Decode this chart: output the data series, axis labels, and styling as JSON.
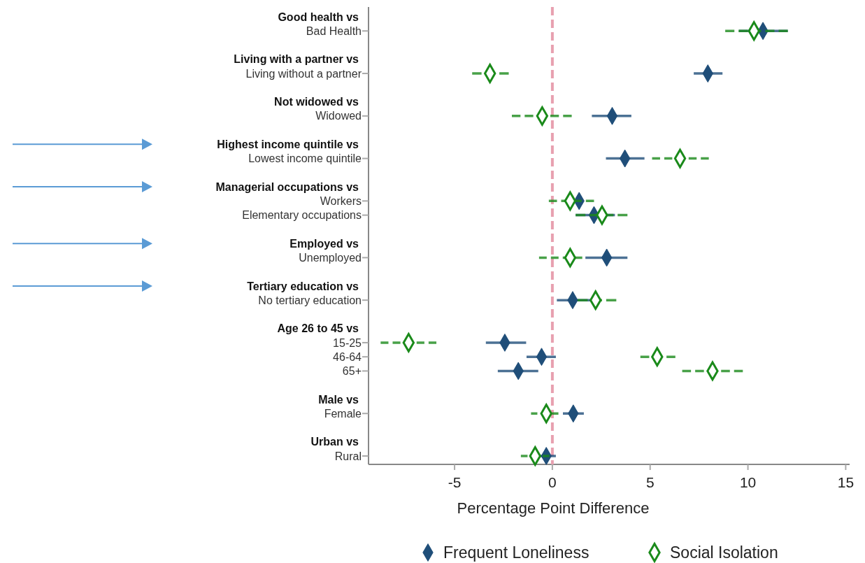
{
  "chart_data": {
    "type": "scatter",
    "orientation": "horizontal",
    "xlabel": "Percentage Point Difference",
    "categories": [
      "Good health vs",
      "Bad Health",
      null,
      "Living with a partner vs",
      "Living without a partner",
      null,
      "Not widowed vs",
      "Widowed",
      null,
      "Highest income quintile vs",
      "Lowest income quintile",
      null,
      "Managerial occupations vs",
      "Workers",
      "Elementary occupations",
      null,
      "Employed vs",
      "Unemployed",
      null,
      "Tertiary education vs",
      "No tertiary education",
      null,
      "Age 26 to 45 vs",
      "15-25",
      "46-64",
      "65+",
      null,
      "Male vs",
      "Female",
      null,
      "Urban vs",
      "Rural"
    ],
    "series": [
      {
        "name": "Frequent Loneliness",
        "color": "#1f4e79",
        "values": [
          null,
          10.77,
          null,
          null,
          7.95,
          null,
          null,
          3.06,
          null,
          null,
          3.71,
          null,
          null,
          1.37,
          2.13,
          null,
          null,
          2.78,
          null,
          null,
          1.04,
          null,
          null,
          -2.43,
          -0.55,
          -1.74,
          null,
          null,
          1.07,
          null,
          null,
          -0.31
        ],
        "errors": [
          null,
          [
            9.54,
            12.04
          ],
          null,
          null,
          [
            7.23,
            8.7
          ],
          null,
          null,
          [
            2.02,
            4.04
          ],
          null,
          null,
          [
            2.74,
            4.71
          ],
          null,
          null,
          null,
          [
            1.19,
            3.2
          ],
          null,
          null,
          [
            1.69,
            3.84
          ],
          null,
          null,
          [
            0.23,
            2.05
          ],
          null,
          null,
          [
            -3.4,
            -1.34
          ],
          [
            -1.32,
            0.18
          ],
          [
            -2.79,
            -0.72
          ],
          null,
          null,
          [
            0.54,
            1.61
          ],
          null,
          null,
          [
            -0.72,
            0.18
          ]
        ]
      },
      {
        "name": "Social Isolation",
        "color": "#1a8a1a",
        "line_style": "dashed",
        "values": [
          null,
          10.31,
          null,
          null,
          -3.19,
          null,
          null,
          -0.52,
          null,
          null,
          6.53,
          null,
          null,
          0.91,
          2.54,
          null,
          null,
          0.91,
          null,
          null,
          2.21,
          null,
          null,
          -7.35,
          5.36,
          8.19,
          null,
          null,
          -0.31,
          null,
          null,
          -0.88
        ],
        "errors": [
          null,
          [
            8.84,
            12.04
          ],
          null,
          null,
          [
            -4.1,
            -2.23
          ],
          null,
          null,
          [
            -2.07,
            0.99
          ],
          null,
          null,
          [
            5.1,
            8.0
          ],
          null,
          null,
          [
            -0.18,
            2.13
          ],
          [
            1.19,
            3.84
          ],
          null,
          null,
          [
            -0.68,
            1.53
          ],
          null,
          null,
          [
            1.29,
            3.27
          ],
          null,
          null,
          [
            -8.78,
            -5.93
          ],
          [
            4.5,
            6.29
          ],
          [
            6.64,
            9.74
          ],
          null,
          null,
          [
            -1.09,
            0.31
          ],
          null,
          null,
          [
            -1.61,
            -0.15
          ]
        ]
      }
    ],
    "xlim": [
      -9.4,
      15.2
    ],
    "xticks": [
      -5,
      0,
      5,
      10,
      15
    ],
    "marker": "diamond",
    "grid": false,
    "legend": "bottom",
    "ref_lines": [
      {
        "axis": "x",
        "value": 0,
        "color": "#e8a0b0",
        "line_style": "dashed"
      }
    ]
  }
}
